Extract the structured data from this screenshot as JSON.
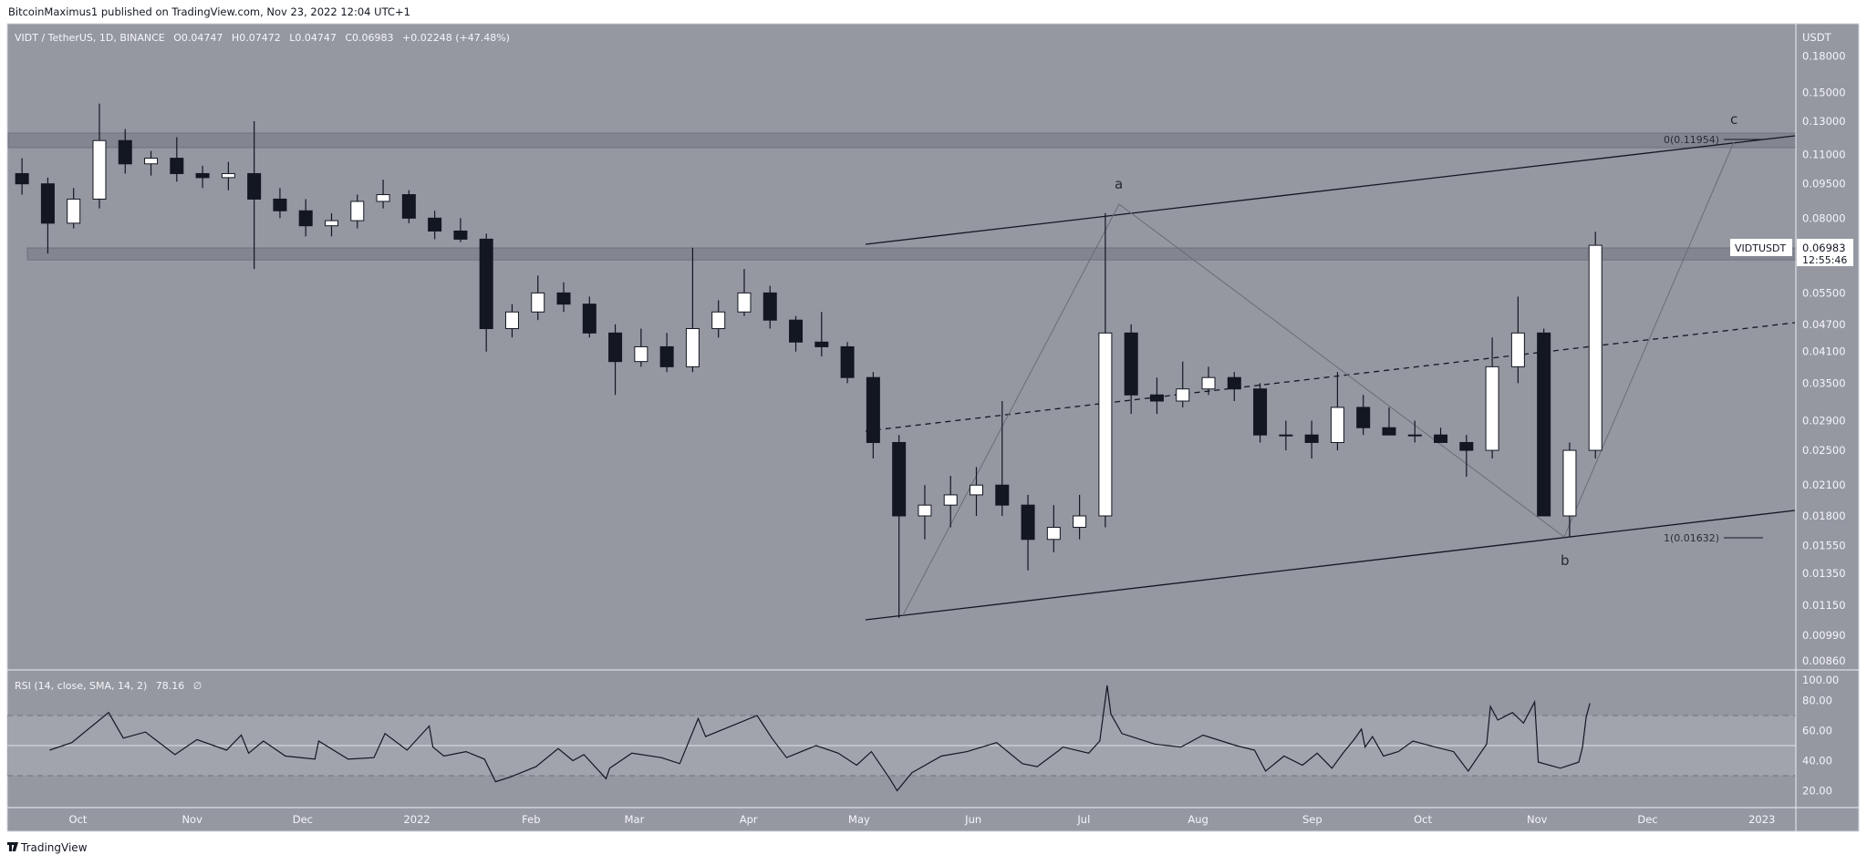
{
  "header": {
    "published": "BitcoinMaximus1 published on TradingView.com, Nov 23, 2022 12:04 UTC+1"
  },
  "legend": {
    "symbol": "VIDT / TetherUS, 1D, BINANCE",
    "open_label": "O",
    "open": "0.04747",
    "high_label": "H",
    "high": "0.07472",
    "low_label": "L",
    "low": "0.04747",
    "close_label": "C",
    "close": "0.06983",
    "change": "+0.02248 (+47.48%)"
  },
  "price_axis": {
    "unit": "USDT",
    "scale": "log",
    "ticks": [
      "0.18000",
      "0.15000",
      "0.13000",
      "0.11000",
      "0.09500",
      "0.08000",
      "0.05500",
      "0.04700",
      "0.04100",
      "0.03500",
      "0.02900",
      "0.02500",
      "0.02100",
      "0.01800",
      "0.01550",
      "0.01350",
      "0.01150",
      "0.00990",
      "0.00860"
    ]
  },
  "last_price": {
    "symbol": "VIDTUSDT",
    "price": "0.06983",
    "countdown": "12:55:46"
  },
  "annotations": {
    "wave_a": "a",
    "wave_b": "b",
    "wave_c": "c",
    "fib_0": "0(0.11954)",
    "fib_1": "1(0.01632)"
  },
  "zones": [
    {
      "name": "resistance",
      "low": 0.1139,
      "high": 0.1225
    },
    {
      "name": "support-resistance",
      "low": 0.0649,
      "high": 0.0689
    }
  ],
  "rsi": {
    "label": "RSI (14, close, SMA, 14, 2)",
    "value": "78.16",
    "extra": "∅",
    "ticks": [
      "100.00",
      "80.00",
      "60.00",
      "40.00",
      "20.00"
    ],
    "levels": {
      "upper": 70,
      "middle": 50,
      "lower": 30
    }
  },
  "time_axis": {
    "labels": [
      {
        "text": "Oct",
        "date": "2021-10-01"
      },
      {
        "text": "Nov",
        "date": "2021-11-01"
      },
      {
        "text": "Dec",
        "date": "2021-12-01"
      },
      {
        "text": "2022",
        "date": "2022-01-01"
      },
      {
        "text": "Feb",
        "date": "2022-02-01"
      },
      {
        "text": "Mar",
        "date": "2022-03-01"
      },
      {
        "text": "Apr",
        "date": "2022-04-01"
      },
      {
        "text": "May",
        "date": "2022-05-01"
      },
      {
        "text": "Jun",
        "date": "2022-06-01"
      },
      {
        "text": "Jul",
        "date": "2022-07-01"
      },
      {
        "text": "Aug",
        "date": "2022-08-01"
      },
      {
        "text": "Sep",
        "date": "2022-09-01"
      },
      {
        "text": "Oct",
        "date": "2022-10-01"
      },
      {
        "text": "Nov",
        "date": "2022-11-01"
      },
      {
        "text": "Dec",
        "date": "2022-12-01"
      },
      {
        "text": "2023",
        "date": "2023-01-01"
      }
    ]
  },
  "footer": {
    "brand": "TradingView"
  },
  "colors": {
    "background": "#9598a1",
    "rsi_band": "#a1a4ac",
    "zone": "#80838d",
    "up_candle": "#ffffff",
    "down_candle": "#131722",
    "line": "#131722",
    "wave_line": "#6a6d75"
  },
  "chart_data": [
    {
      "type": "candlestick",
      "interval": "1W (approximated from 1D chart)",
      "fields": [
        "week_start",
        "open",
        "high",
        "low",
        "close"
      ],
      "candles": [
        [
          "2021-09-20",
          0.1,
          0.108,
          0.09,
          0.095
        ],
        [
          "2021-09-27",
          0.095,
          0.098,
          0.067,
          0.078
        ],
        [
          "2021-10-04",
          0.078,
          0.093,
          0.076,
          0.088
        ],
        [
          "2021-10-11",
          0.088,
          0.142,
          0.084,
          0.118
        ],
        [
          "2021-10-18",
          0.118,
          0.125,
          0.1,
          0.105
        ],
        [
          "2021-10-25",
          0.105,
          0.112,
          0.099,
          0.108
        ],
        [
          "2021-11-01",
          0.108,
          0.12,
          0.096,
          0.1
        ],
        [
          "2021-11-08",
          0.1,
          0.104,
          0.093,
          0.098
        ],
        [
          "2021-11-15",
          0.098,
          0.106,
          0.092,
          0.1
        ],
        [
          "2021-11-22",
          0.1,
          0.13,
          0.062,
          0.088
        ],
        [
          "2021-11-29",
          0.088,
          0.093,
          0.08,
          0.083
        ],
        [
          "2021-12-06",
          0.083,
          0.088,
          0.073,
          0.077
        ],
        [
          "2021-12-13",
          0.077,
          0.082,
          0.073,
          0.079
        ],
        [
          "2021-12-20",
          0.079,
          0.09,
          0.076,
          0.087
        ],
        [
          "2021-12-27",
          0.087,
          0.097,
          0.084,
          0.09
        ],
        [
          "2022-01-03",
          0.09,
          0.092,
          0.078,
          0.08
        ],
        [
          "2022-01-10",
          0.08,
          0.083,
          0.072,
          0.075
        ],
        [
          "2022-01-17",
          0.075,
          0.08,
          0.071,
          0.072
        ],
        [
          "2022-01-24",
          0.072,
          0.074,
          0.041,
          0.046
        ],
        [
          "2022-01-31",
          0.046,
          0.052,
          0.044,
          0.05
        ],
        [
          "2022-02-07",
          0.05,
          0.06,
          0.048,
          0.055
        ],
        [
          "2022-02-14",
          0.055,
          0.058,
          0.05,
          0.052
        ],
        [
          "2022-02-21",
          0.052,
          0.054,
          0.044,
          0.045
        ],
        [
          "2022-02-28",
          0.045,
          0.047,
          0.033,
          0.039
        ],
        [
          "2022-03-07",
          0.039,
          0.046,
          0.038,
          0.042
        ],
        [
          "2022-03-14",
          0.042,
          0.045,
          0.037,
          0.038
        ],
        [
          "2022-03-21",
          0.038,
          0.069,
          0.037,
          0.046
        ],
        [
          "2022-03-28",
          0.046,
          0.053,
          0.044,
          0.05
        ],
        [
          "2022-04-04",
          0.05,
          0.062,
          0.049,
          0.055
        ],
        [
          "2022-04-11",
          0.055,
          0.057,
          0.046,
          0.048
        ],
        [
          "2022-04-18",
          0.048,
          0.049,
          0.041,
          0.043
        ],
        [
          "2022-04-25",
          0.043,
          0.05,
          0.04,
          0.042
        ],
        [
          "2022-05-02",
          0.042,
          0.043,
          0.035,
          0.036
        ],
        [
          "2022-05-09",
          0.036,
          0.037,
          0.024,
          0.026
        ],
        [
          "2022-05-16",
          0.026,
          0.027,
          0.0108,
          0.018
        ],
        [
          "2022-05-23",
          0.018,
          0.021,
          0.016,
          0.019
        ],
        [
          "2022-05-30",
          0.019,
          0.022,
          0.017,
          0.02
        ],
        [
          "2022-06-06",
          0.02,
          0.023,
          0.018,
          0.021
        ],
        [
          "2022-06-13",
          0.021,
          0.032,
          0.018,
          0.019
        ],
        [
          "2022-06-20",
          0.019,
          0.02,
          0.0137,
          0.016
        ],
        [
          "2022-06-27",
          0.016,
          0.019,
          0.015,
          0.017
        ],
        [
          "2022-07-04",
          0.017,
          0.02,
          0.016,
          0.018
        ],
        [
          "2022-07-11",
          0.018,
          0.082,
          0.017,
          0.045
        ],
        [
          "2022-07-18",
          0.045,
          0.047,
          0.03,
          0.033
        ],
        [
          "2022-07-25",
          0.033,
          0.036,
          0.03,
          0.032
        ],
        [
          "2022-08-01",
          0.032,
          0.039,
          0.031,
          0.034
        ],
        [
          "2022-08-08",
          0.034,
          0.038,
          0.033,
          0.036
        ],
        [
          "2022-08-15",
          0.036,
          0.037,
          0.032,
          0.034
        ],
        [
          "2022-08-22",
          0.034,
          0.035,
          0.026,
          0.027
        ],
        [
          "2022-08-29",
          0.027,
          0.029,
          0.025,
          0.027
        ],
        [
          "2022-09-05",
          0.027,
          0.029,
          0.024,
          0.026
        ],
        [
          "2022-09-12",
          0.026,
          0.037,
          0.025,
          0.031
        ],
        [
          "2022-09-19",
          0.031,
          0.033,
          0.027,
          0.028
        ],
        [
          "2022-09-26",
          0.028,
          0.031,
          0.027,
          0.027
        ],
        [
          "2022-10-03",
          0.027,
          0.029,
          0.026,
          0.027
        ],
        [
          "2022-10-10",
          0.027,
          0.028,
          0.026,
          0.026
        ],
        [
          "2022-10-17",
          0.026,
          0.027,
          0.0219,
          0.025
        ],
        [
          "2022-10-24",
          0.025,
          0.044,
          0.024,
          0.038
        ],
        [
          "2022-10-31",
          0.038,
          0.054,
          0.035,
          0.045
        ],
        [
          "2022-11-07",
          0.045,
          0.046,
          0.018,
          0.018
        ],
        [
          "2022-11-14",
          0.018,
          0.026,
          0.0162,
          0.025
        ],
        [
          "2022-11-21",
          0.025,
          0.07472,
          0.024,
          0.06983
        ]
      ]
    },
    {
      "type": "line",
      "ylim": [
        0,
        100
      ],
      "points": [
        [
          "2021-10-01",
          47
        ],
        [
          "2021-10-07",
          52
        ],
        [
          "2021-10-17",
          72
        ],
        [
          "2021-10-21",
          55
        ],
        [
          "2021-10-27",
          59
        ],
        [
          "2021-11-04",
          44
        ],
        [
          "2021-11-10",
          54
        ],
        [
          "2021-11-18",
          47
        ],
        [
          "2021-11-22",
          57
        ],
        [
          "2021-11-24",
          45
        ],
        [
          "2021-11-28",
          53
        ],
        [
          "2021-12-04",
          43
        ],
        [
          "2021-12-12",
          41
        ],
        [
          "2021-12-13",
          53
        ],
        [
          "2021-12-21",
          41
        ],
        [
          "2021-12-28",
          42
        ],
        [
          "2021-12-31",
          58
        ],
        [
          "2022-01-06",
          47
        ],
        [
          "2022-01-12",
          63
        ],
        [
          "2022-01-13",
          49
        ],
        [
          "2022-01-16",
          43
        ],
        [
          "2022-01-22",
          46
        ],
        [
          "2022-01-27",
          41
        ],
        [
          "2022-01-30",
          26
        ],
        [
          "2022-02-03",
          29
        ],
        [
          "2022-02-10",
          36
        ],
        [
          "2022-02-16",
          48
        ],
        [
          "2022-02-20",
          40
        ],
        [
          "2022-02-23",
          44
        ],
        [
          "2022-03-01",
          28
        ],
        [
          "2022-03-02",
          35
        ],
        [
          "2022-03-08",
          45
        ],
        [
          "2022-03-16",
          42
        ],
        [
          "2022-03-21",
          38
        ],
        [
          "2022-03-26",
          68
        ],
        [
          "2022-03-28",
          56
        ],
        [
          "2022-04-03",
          62
        ],
        [
          "2022-04-11",
          70
        ],
        [
          "2022-04-15",
          55
        ],
        [
          "2022-04-19",
          42
        ],
        [
          "2022-04-27",
          50
        ],
        [
          "2022-05-03",
          45
        ],
        [
          "2022-05-08",
          37
        ],
        [
          "2022-05-12",
          46
        ],
        [
          "2022-05-17",
          28
        ],
        [
          "2022-05-19",
          20
        ],
        [
          "2022-05-23",
          32
        ],
        [
          "2022-05-31",
          43
        ],
        [
          "2022-06-07",
          46
        ],
        [
          "2022-06-15",
          52
        ],
        [
          "2022-06-22",
          38
        ],
        [
          "2022-06-26",
          36
        ],
        [
          "2022-07-02",
          47
        ],
        [
          "2022-07-03",
          49
        ],
        [
          "2022-07-10",
          45
        ],
        [
          "2022-07-13",
          53
        ],
        [
          "2022-07-15",
          90
        ],
        [
          "2022-07-16",
          71
        ],
        [
          "2022-07-19",
          58
        ],
        [
          "2022-07-28",
          51
        ],
        [
          "2022-08-04",
          49
        ],
        [
          "2022-08-10",
          57
        ],
        [
          "2022-08-19",
          50
        ],
        [
          "2022-08-24",
          47
        ],
        [
          "2022-08-27",
          33
        ],
        [
          "2022-09-01",
          43
        ],
        [
          "2022-09-06",
          37
        ],
        [
          "2022-09-10",
          45
        ],
        [
          "2022-09-14",
          35
        ],
        [
          "2022-09-17",
          45
        ],
        [
          "2022-09-20",
          54
        ],
        [
          "2022-09-22",
          61
        ],
        [
          "2022-09-23",
          49
        ],
        [
          "2022-09-25",
          56
        ],
        [
          "2022-09-28",
          43
        ],
        [
          "2022-10-02",
          46
        ],
        [
          "2022-10-06",
          53
        ],
        [
          "2022-10-12",
          49
        ],
        [
          "2022-10-17",
          46
        ],
        [
          "2022-10-21",
          33
        ],
        [
          "2022-10-24",
          44
        ],
        [
          "2022-10-26",
          51
        ],
        [
          "2022-10-27",
          76
        ],
        [
          "2022-10-29",
          67
        ],
        [
          "2022-11-02",
          72
        ],
        [
          "2022-11-05",
          65
        ],
        [
          "2022-11-08",
          79
        ],
        [
          "2022-11-09",
          39
        ],
        [
          "2022-11-15",
          35
        ],
        [
          "2022-11-20",
          39
        ],
        [
          "2022-11-21",
          49
        ],
        [
          "2022-11-22",
          69
        ],
        [
          "2022-11-23",
          78.16
        ]
      ]
    }
  ]
}
